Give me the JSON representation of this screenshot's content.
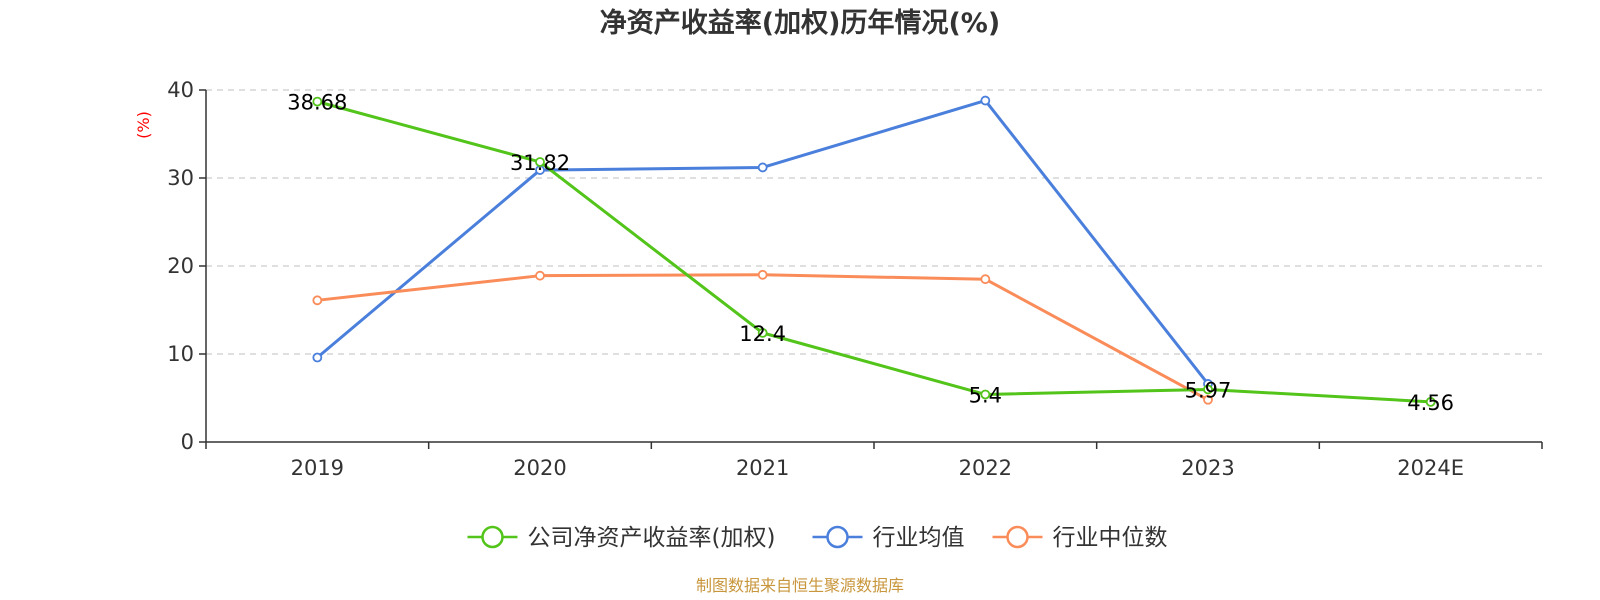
{
  "chart_data": {
    "type": "line",
    "title": "净资产收益率(加权)历年情况(%)",
    "ylabel": "(%)",
    "xlabel": "",
    "categories": [
      "2019",
      "2020",
      "2021",
      "2022",
      "2023",
      "2024E"
    ],
    "ylim": [
      0,
      40
    ],
    "yticks": [
      0,
      10,
      20,
      30,
      40
    ],
    "grid": true,
    "legend_position": "bottom",
    "series": [
      {
        "name": "公司净资产收益率(加权)",
        "color": "#52c41a",
        "values": [
          38.68,
          31.82,
          12.4,
          5.4,
          5.97,
          4.56
        ],
        "labels": [
          "38.68",
          "31.82",
          "12.4",
          "5.4",
          "5.97",
          "4.56"
        ]
      },
      {
        "name": "行业均值",
        "color": "#4a7fdc",
        "values": [
          9.6,
          30.9,
          31.2,
          38.8,
          6.6,
          null
        ]
      },
      {
        "name": "行业中位数",
        "color": "#fa8c5a",
        "values": [
          16.1,
          18.9,
          19.0,
          18.5,
          4.8,
          null
        ]
      }
    ],
    "source": "制图数据来自恒生聚源数据库"
  },
  "colors": {
    "axis": "#333333",
    "grid": "#cccccc",
    "ylabel": "#ff0000",
    "source": "#c8963c"
  }
}
